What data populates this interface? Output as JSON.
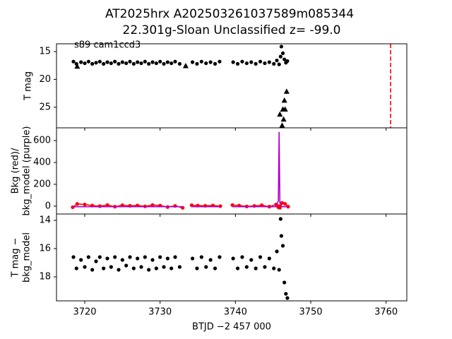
{
  "chart_data": [
    {
      "type": "scatter",
      "title": [
        "AT2025hrx  A202503261037589m085344",
        "22.301g-Sloan Unclassified z= -99.0"
      ],
      "annotation": "s89 cam1ccd3",
      "ylabel": [
        "T mag"
      ],
      "xlim": [
        3716.25,
        3762.75
      ],
      "xticks": [
        3720,
        3730,
        3740,
        3750,
        3760
      ],
      "ylim": [
        28.7,
        13.6
      ],
      "yticks": [
        15,
        20,
        25
      ],
      "vline": {
        "x": 3760.6,
        "color": "#ff0000"
      },
      "series": [
        {
          "marker": "o",
          "color": "#000000",
          "x": [
            3718.5,
            3718.9,
            3719.5,
            3720.0,
            3720.5,
            3721.0,
            3721.5,
            3722.0,
            3722.5,
            3723.0,
            3723.5,
            3724.0,
            3724.5,
            3725.0,
            3725.5,
            3726.0,
            3726.5,
            3727.0,
            3727.5,
            3728.0,
            3728.5,
            3729.0,
            3729.5,
            3730.0,
            3730.5,
            3731.0,
            3731.5,
            3732.0,
            3732.6,
            3734.3,
            3734.9,
            3735.5,
            3736.1,
            3736.7,
            3737.3,
            3737.9,
            3739.7,
            3740.3,
            3740.9,
            3741.5,
            3742.1,
            3742.7,
            3743.3,
            3743.9,
            3744.5,
            3745.1,
            3745.5,
            3745.8,
            3746.0,
            3746.1,
            3746.3,
            3746.5,
            3746.7,
            3746.9
          ],
          "values": [
            16.8,
            17.2,
            16.9,
            17.1,
            16.8,
            17.2,
            17.0,
            16.8,
            17.2,
            16.9,
            17.1,
            16.8,
            17.2,
            16.9,
            17.1,
            16.8,
            17.2,
            16.9,
            17.1,
            16.8,
            17.2,
            16.9,
            17.1,
            16.8,
            17.2,
            16.9,
            17.1,
            16.8,
            17.2,
            16.9,
            17.2,
            16.8,
            17.1,
            16.9,
            17.2,
            16.8,
            16.9,
            17.2,
            16.8,
            17.1,
            16.9,
            17.2,
            16.8,
            17.1,
            16.9,
            17.2,
            16.6,
            17.3,
            15.9,
            14.1,
            15.3,
            16.4,
            17.0,
            16.7
          ]
        },
        {
          "marker": "^",
          "color": "#000000",
          "x": [
            3719.0,
            3733.4,
            3745.9,
            3746.2,
            3746.3,
            3746.4,
            3746.5,
            3746.6,
            3746.8
          ],
          "values": [
            17.7,
            17.6,
            26.3,
            28.3,
            25.4,
            27.2,
            23.8,
            25.4,
            22.2
          ]
        }
      ]
    },
    {
      "type": "line",
      "ylabel": [
        "Bkg (red)/",
        "bkg_model (purple)"
      ],
      "xlim": [
        3716.25,
        3762.75
      ],
      "xticks": [
        3720,
        3730,
        3740,
        3750,
        3760
      ],
      "ylim": [
        -72,
        717
      ],
      "yticks": [
        0,
        200,
        400,
        600
      ],
      "x": [
        3718.4,
        3719.0,
        3720.0,
        3721.0,
        3722.0,
        3723.0,
        3724.0,
        3725.0,
        3726.0,
        3727.0,
        3728.0,
        3729.0,
        3730.0,
        3731.0,
        3732.0,
        3733.0,
        3733.6,
        3734.2,
        3735.0,
        3736.0,
        3737.0,
        3738.0,
        3739.0,
        3739.6,
        3740.5,
        3741.5,
        3742.5,
        3743.5,
        3744.5,
        3745.4,
        3745.7,
        3745.8,
        3745.9,
        3746.2,
        3746.6,
        3747.0
      ],
      "series": [
        {
          "color": "#ff0000",
          "marker": "o",
          "values": [
            -10,
            20,
            15,
            5,
            0,
            10,
            -5,
            8,
            3,
            6,
            -2,
            10,
            5,
            -8,
            2,
            -15,
            null,
            8,
            5,
            3,
            6,
            0,
            null,
            10,
            5,
            -3,
            2,
            8,
            -5,
            15,
            -10,
            0,
            -15,
            30,
            20,
            -5
          ]
        },
        {
          "color": "#b000c8",
          "values": [
            -5,
            -5,
            -5,
            -5,
            -5,
            -5,
            -5,
            -5,
            -5,
            -5,
            -5,
            -5,
            -5,
            -5,
            -5,
            -5,
            null,
            -5,
            -5,
            -5,
            -5,
            -5,
            null,
            -5,
            -5,
            -5,
            -5,
            -5,
            -5,
            -5,
            50,
            680,
            30,
            -5,
            -5,
            -5
          ]
        }
      ]
    },
    {
      "type": "scatter",
      "ylabel": [
        "T mag −",
        "bkg_model"
      ],
      "xlabel": "BTJD −2 457 000",
      "xlim": [
        3716.25,
        3762.75
      ],
      "xticks": [
        3720,
        3730,
        3740,
        3750,
        3760
      ],
      "ylim": [
        19.7,
        13.55
      ],
      "yticks": [
        14,
        16,
        18
      ],
      "series": [
        {
          "marker": "o",
          "color": "#000000",
          "x": [
            3718.5,
            3718.9,
            3719.5,
            3720.0,
            3720.5,
            3721.0,
            3721.5,
            3722.0,
            3722.5,
            3723.0,
            3723.5,
            3724.0,
            3724.5,
            3725.0,
            3725.5,
            3726.0,
            3726.5,
            3727.0,
            3727.5,
            3728.0,
            3728.5,
            3729.0,
            3729.5,
            3730.0,
            3730.5,
            3731.0,
            3731.5,
            3732.0,
            3732.6,
            3734.3,
            3734.9,
            3735.5,
            3736.1,
            3736.7,
            3737.3,
            3737.9,
            3739.7,
            3740.3,
            3740.9,
            3741.5,
            3742.1,
            3742.7,
            3743.3,
            3743.9,
            3744.5,
            3745.1,
            3745.5,
            3745.8,
            3746.0,
            3746.1,
            3746.3,
            3746.5,
            3746.7,
            3746.9
          ],
          "values": [
            16.6,
            17.4,
            16.8,
            17.3,
            16.6,
            17.5,
            16.9,
            16.6,
            17.4,
            16.7,
            17.3,
            16.6,
            17.5,
            16.8,
            17.2,
            16.6,
            17.4,
            16.7,
            17.3,
            16.6,
            17.5,
            16.8,
            17.4,
            16.6,
            17.3,
            16.7,
            17.4,
            16.6,
            17.3,
            16.7,
            17.4,
            16.6,
            17.3,
            16.8,
            17.4,
            16.6,
            16.7,
            17.4,
            16.6,
            17.3,
            16.8,
            17.4,
            16.6,
            17.3,
            16.7,
            17.4,
            16.2,
            17.5,
            13.9,
            15.1,
            15.8,
            18.4,
            19.2,
            19.5
          ]
        }
      ]
    }
  ]
}
